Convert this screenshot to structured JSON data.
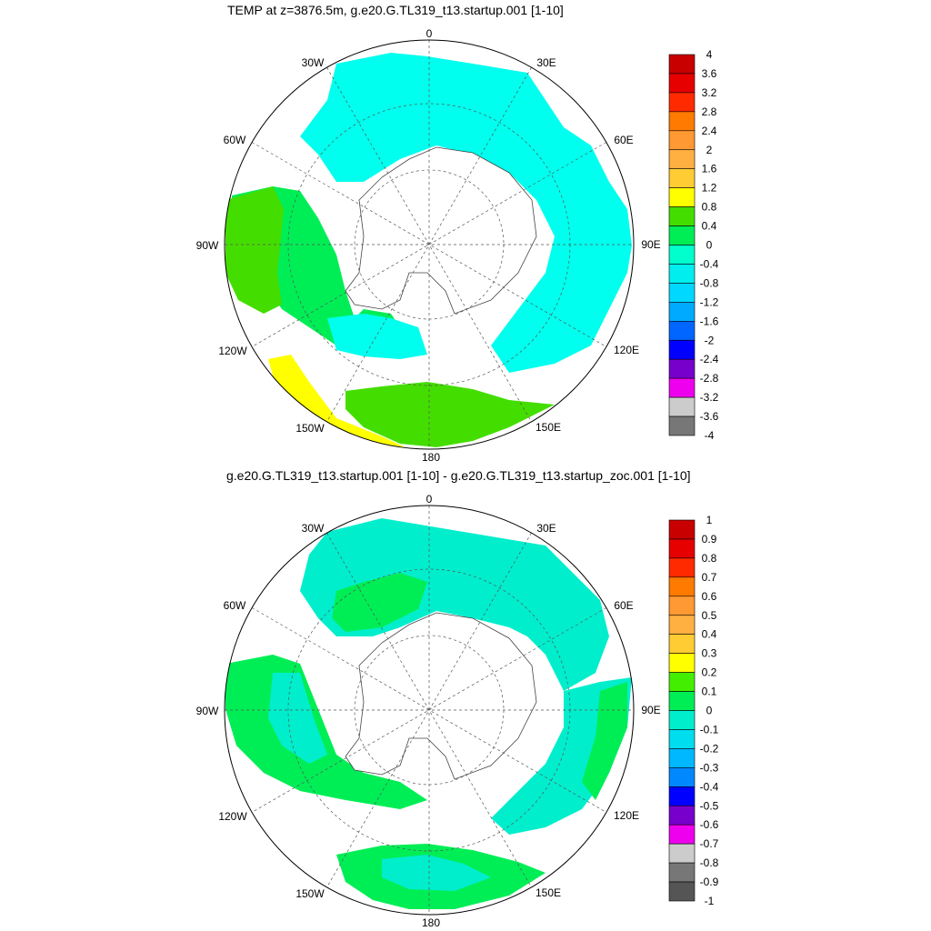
{
  "panels": [
    {
      "id": "top",
      "title": "TEMP at z=3876.5m, g.e20.G.TL319_t13.startup.001 [1-10]",
      "lon_labels": [
        "0",
        "30E",
        "60E",
        "90E",
        "120E",
        "150E",
        "180",
        "150W",
        "120W",
        "90W",
        "60W",
        "30W"
      ],
      "colorbar": {
        "levels": [
          "4",
          "3.6",
          "3.2",
          "2.8",
          "2.4",
          "2",
          "1.6",
          "1.2",
          "0.8",
          "0.4",
          "0",
          "-0.4",
          "-0.8",
          "-1.2",
          "-1.6",
          "-2",
          "-2.4",
          "-2.8",
          "-3.2",
          "-3.6",
          "-4"
        ],
        "colors": [
          "#c80000",
          "#e60000",
          "#ff2a00",
          "#ff7a00",
          "#ff9933",
          "#ffb040",
          "#ffcc33",
          "#ffff00",
          "#44dd00",
          "#00ee55",
          "#00ffcc",
          "#00eeee",
          "#00d8ff",
          "#00aaff",
          "#0066ff",
          "#0000ff",
          "#7700cc",
          "#ee00ee",
          "#cccccc",
          "#777777"
        ]
      }
    },
    {
      "id": "bottom",
      "title": "g.e20.G.TL319_t13.startup.001 [1-10] - g.e20.G.TL319_t13.startup_zoc.001 [1-10]",
      "lon_labels": [
        "0",
        "30E",
        "60E",
        "90E",
        "120E",
        "150E",
        "180",
        "150W",
        "120W",
        "90W",
        "60W",
        "30W"
      ],
      "colorbar": {
        "levels": [
          "1",
          "0.9",
          "0.8",
          "0.7",
          "0.6",
          "0.5",
          "0.4",
          "0.3",
          "0.2",
          "0.1",
          "0",
          "-0.1",
          "-0.2",
          "-0.3",
          "-0.4",
          "-0.5",
          "-0.6",
          "-0.7",
          "-0.8",
          "-0.9",
          "-1"
        ],
        "colors": [
          "#c80000",
          "#e60000",
          "#ff2a00",
          "#ff7a00",
          "#ff9933",
          "#ffb040",
          "#ffcc33",
          "#ffff00",
          "#44ee00",
          "#00ee55",
          "#00eecc",
          "#00ddee",
          "#00b8ff",
          "#0088ff",
          "#0000ff",
          "#7700cc",
          "#ee00ee",
          "#cccccc",
          "#777777",
          "#555555"
        ]
      }
    }
  ]
}
